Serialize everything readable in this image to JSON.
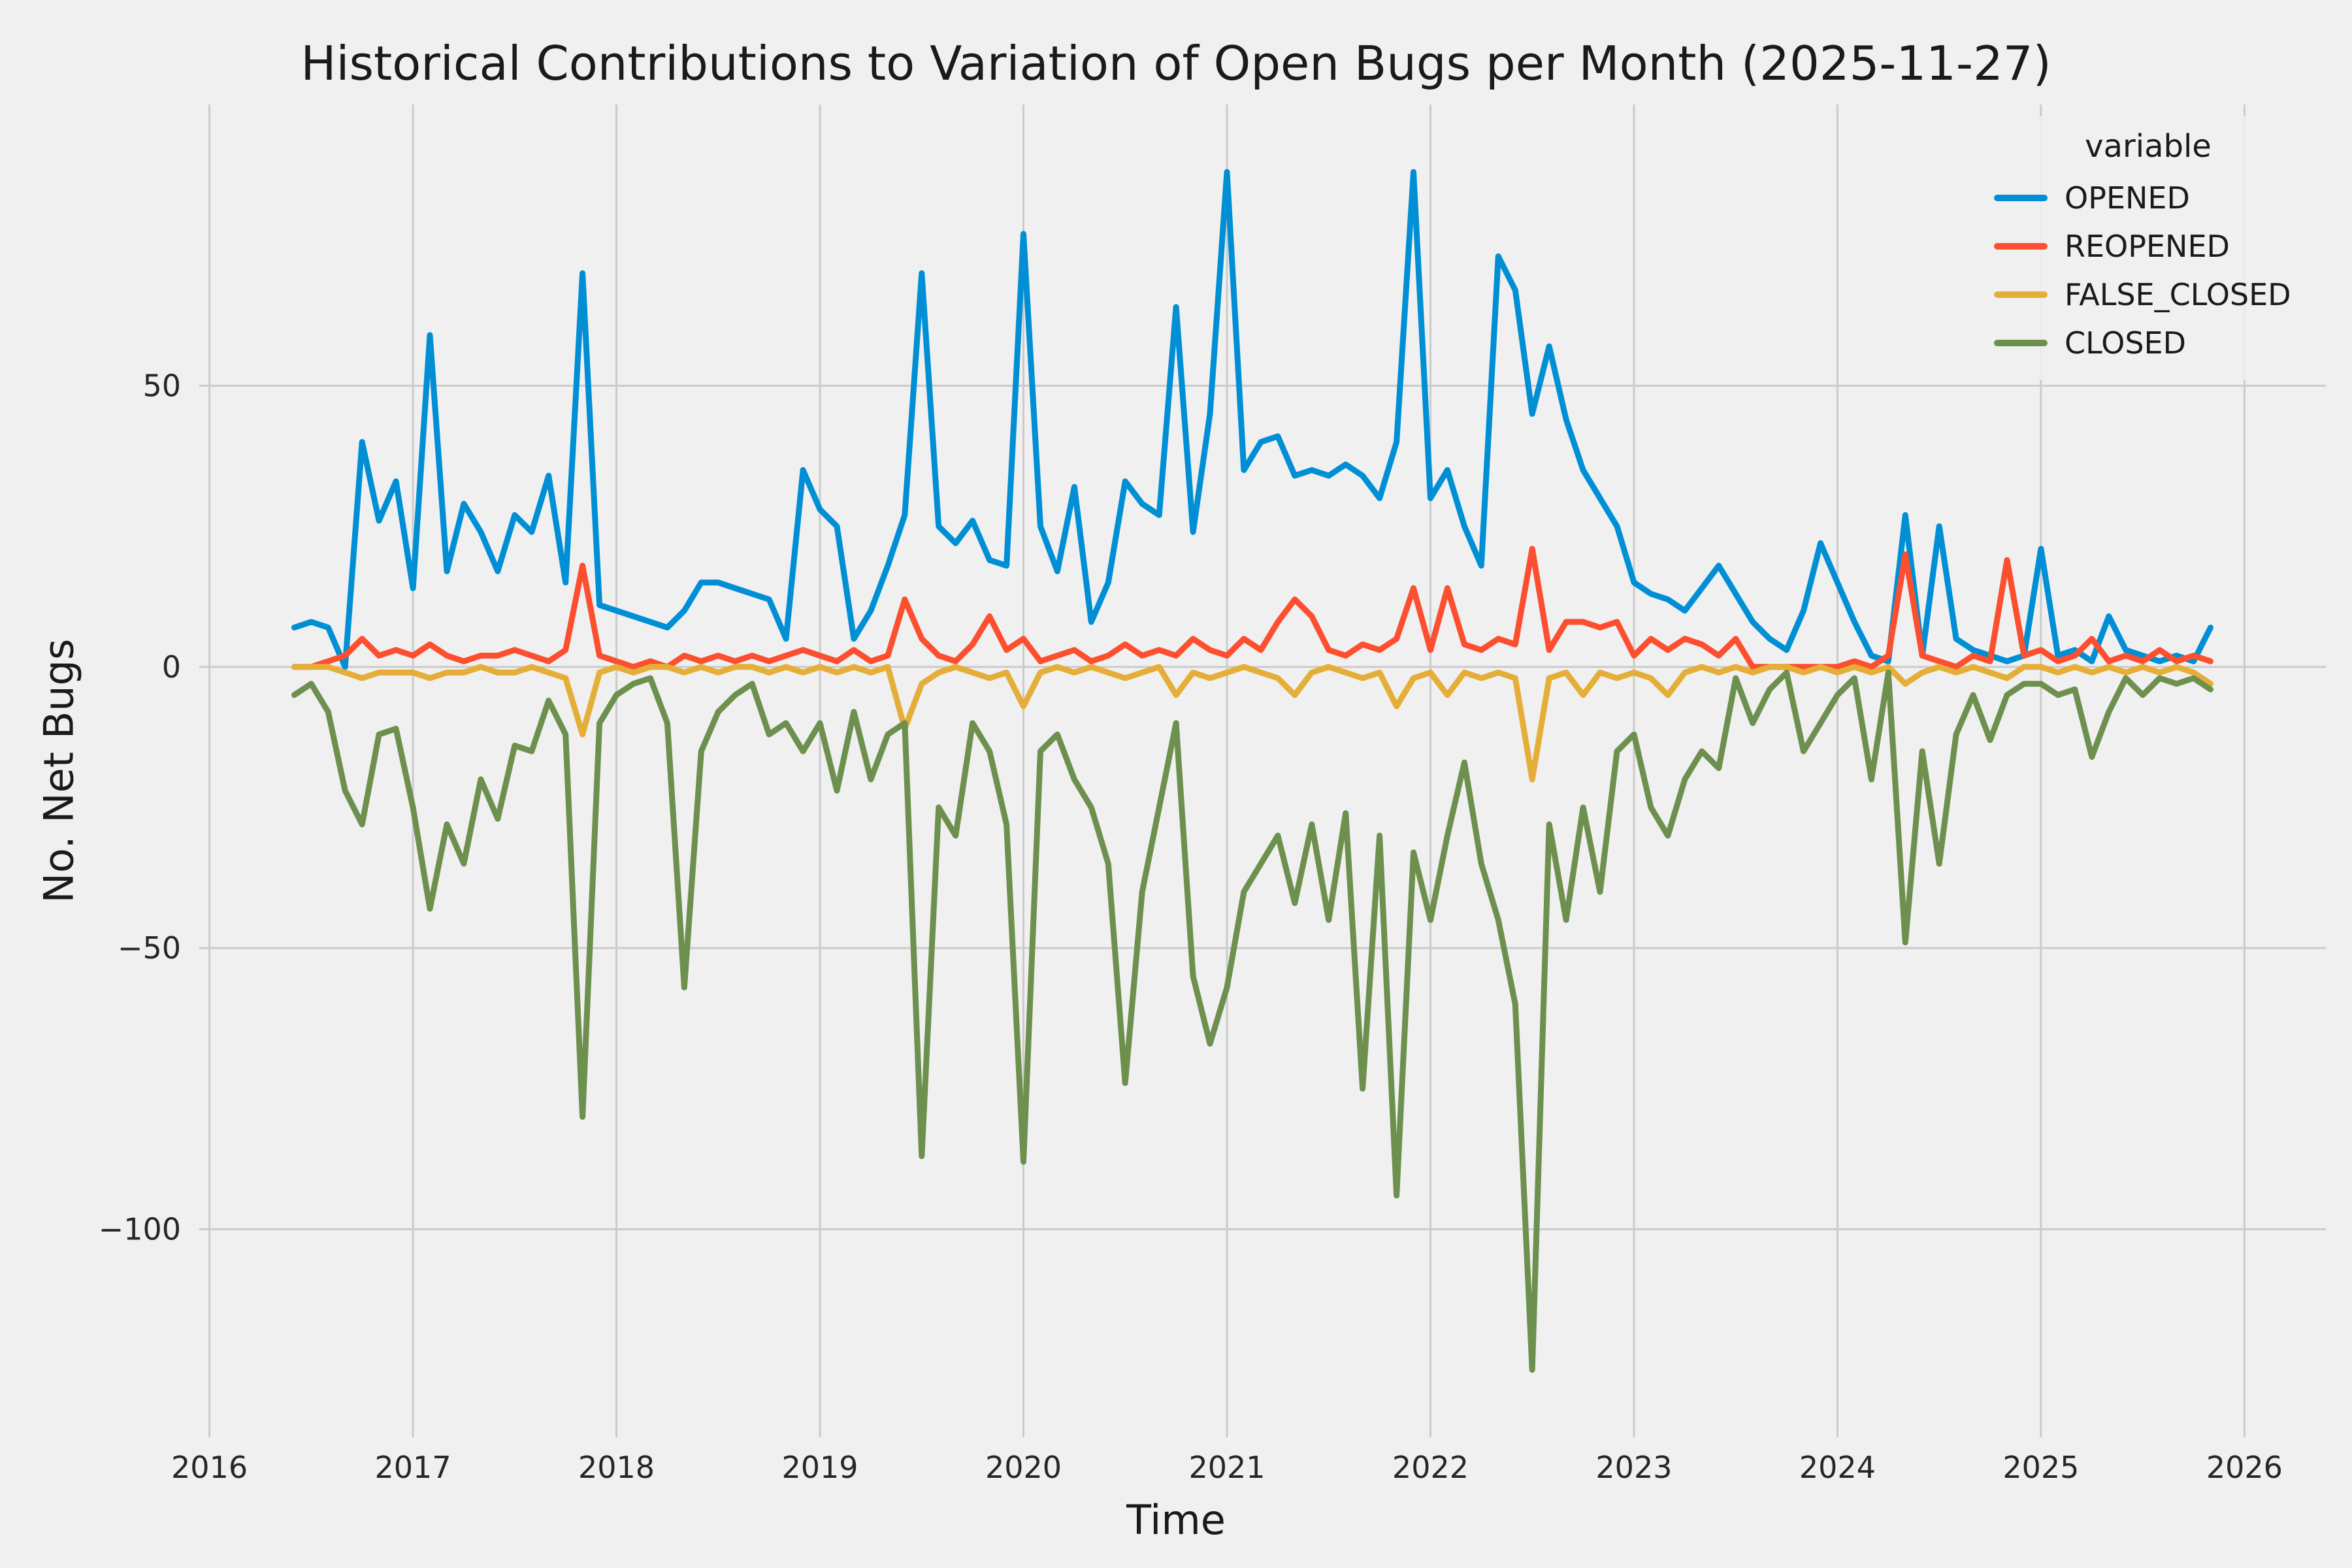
{
  "title": "Historical Contributions to Variation of Open Bugs per Month (2025-11-27)",
  "colors": {
    "background": "#F0F0F0",
    "grid": "#CBCBCB",
    "text": "#262626",
    "opened": "#008FD5",
    "reopened": "#FC4F30",
    "false_closed": "#E5AE38",
    "closed": "#6D904F"
  },
  "chart_data": {
    "type": "line",
    "title": "Historical Contributions to Variation of Open Bugs per Month (2025-11-27)",
    "xlabel": "Time",
    "ylabel": "No. Net Bugs",
    "legend_title": "variable",
    "legend_position": "upper right",
    "grid": true,
    "xlim": [
      2015.95,
      2026.4
    ],
    "ylim": [
      -137,
      100
    ],
    "x_start": "2016-06",
    "x_end": "2025-11",
    "x_frequency": "monthly",
    "xticks": [
      {
        "value": 2016,
        "label": "2016"
      },
      {
        "value": 2017,
        "label": "2017"
      },
      {
        "value": 2018,
        "label": "2018"
      },
      {
        "value": 2019,
        "label": "2019"
      },
      {
        "value": 2020,
        "label": "2020"
      },
      {
        "value": 2021,
        "label": "2021"
      },
      {
        "value": 2022,
        "label": "2022"
      },
      {
        "value": 2023,
        "label": "2023"
      },
      {
        "value": 2024,
        "label": "2024"
      },
      {
        "value": 2025,
        "label": "2025"
      },
      {
        "value": 2026,
        "label": "2026"
      }
    ],
    "yticks": [
      {
        "value": 50,
        "label": "50"
      },
      {
        "value": 0,
        "label": "0"
      },
      {
        "value": -50,
        "label": "−50"
      },
      {
        "value": -100,
        "label": "−100"
      }
    ],
    "series": [
      {
        "name": "OPENED",
        "color": "#008FD5",
        "values": [
          7,
          8,
          7,
          0,
          40,
          26,
          33,
          14,
          59,
          17,
          29,
          24,
          17,
          27,
          24,
          34,
          15,
          70,
          11,
          10,
          9,
          8,
          7,
          10,
          15,
          15,
          14,
          13,
          12,
          5,
          35,
          28,
          25,
          5,
          10,
          18,
          27,
          70,
          25,
          22,
          26,
          19,
          18,
          77,
          25,
          17,
          32,
          8,
          15,
          33,
          29,
          27,
          64,
          24,
          45,
          88,
          35,
          40,
          41,
          34,
          35,
          34,
          36,
          34,
          30,
          40,
          88,
          30,
          35,
          25,
          18,
          73,
          67,
          45,
          57,
          44,
          35,
          30,
          25,
          15,
          13,
          12,
          10,
          14,
          18,
          13,
          8,
          5,
          3,
          10,
          22,
          15,
          8,
          2,
          1,
          27,
          2,
          25,
          5,
          3,
          2,
          1,
          2,
          21,
          2,
          3,
          1,
          9,
          3,
          2,
          1,
          2,
          1,
          7
        ]
      },
      {
        "name": "REOPENED",
        "color": "#FC4F30",
        "values": [
          0,
          0,
          1,
          2,
          5,
          2,
          3,
          2,
          4,
          2,
          1,
          2,
          2,
          3,
          2,
          1,
          3,
          18,
          2,
          1,
          0,
          1,
          0,
          2,
          1,
          2,
          1,
          2,
          1,
          2,
          3,
          2,
          1,
          3,
          1,
          2,
          12,
          5,
          2,
          1,
          4,
          9,
          3,
          5,
          1,
          2,
          3,
          1,
          2,
          4,
          2,
          3,
          2,
          5,
          3,
          2,
          5,
          3,
          8,
          12,
          9,
          3,
          2,
          4,
          3,
          5,
          14,
          3,
          14,
          4,
          3,
          5,
          4,
          21,
          3,
          8,
          8,
          7,
          8,
          2,
          5,
          3,
          5,
          4,
          2,
          5,
          0,
          0,
          0,
          0,
          0,
          0,
          1,
          0,
          2,
          20,
          2,
          1,
          0,
          2,
          1,
          19,
          2,
          3,
          1,
          2,
          5,
          1,
          2,
          1,
          3,
          1,
          2,
          1
        ]
      },
      {
        "name": "FALSE_CLOSED",
        "color": "#E5AE38",
        "values": [
          0,
          0,
          0,
          -1,
          -2,
          -1,
          -1,
          -1,
          -2,
          -1,
          -1,
          0,
          -1,
          -1,
          0,
          -1,
          -2,
          -12,
          -1,
          0,
          -1,
          0,
          0,
          -1,
          0,
          -1,
          0,
          0,
          -1,
          0,
          -1,
          0,
          -1,
          0,
          -1,
          0,
          -11,
          -3,
          -1,
          0,
          -1,
          -2,
          -1,
          -7,
          -1,
          0,
          -1,
          0,
          -1,
          -2,
          -1,
          0,
          -5,
          -1,
          -2,
          -1,
          0,
          -1,
          -2,
          -5,
          -1,
          0,
          -1,
          -2,
          -1,
          -7,
          -2,
          -1,
          -5,
          -1,
          -2,
          -1,
          -2,
          -20,
          -2,
          -1,
          -5,
          -1,
          -2,
          -1,
          -2,
          -5,
          -1,
          0,
          -1,
          0,
          -1,
          0,
          0,
          -1,
          0,
          -1,
          0,
          -1,
          0,
          -3,
          -1,
          0,
          -1,
          0,
          -1,
          -2,
          0,
          0,
          -1,
          0,
          -1,
          0,
          -1,
          0,
          -1,
          0,
          -1,
          -3
        ]
      },
      {
        "name": "CLOSED",
        "color": "#6D904F",
        "values": [
          -5,
          -3,
          -8,
          -22,
          -28,
          -12,
          -11,
          -25,
          -43,
          -28,
          -35,
          -20,
          -27,
          -14,
          -15,
          -6,
          -12,
          -80,
          -10,
          -5,
          -3,
          -2,
          -10,
          -57,
          -15,
          -8,
          -5,
          -3,
          -12,
          -10,
          -15,
          -10,
          -22,
          -8,
          -20,
          -12,
          -10,
          -87,
          -25,
          -30,
          -10,
          -15,
          -28,
          -88,
          -15,
          -12,
          -20,
          -25,
          -35,
          -74,
          -40,
          -25,
          -10,
          -55,
          -67,
          -57,
          -40,
          -35,
          -30,
          -42,
          -28,
          -45,
          -26,
          -75,
          -30,
          -94,
          -33,
          -45,
          -30,
          -17,
          -35,
          -45,
          -60,
          -125,
          -28,
          -45,
          -25,
          -40,
          -15,
          -12,
          -25,
          -30,
          -20,
          -15,
          -18,
          -2,
          -10,
          -4,
          -1,
          -15,
          -10,
          -5,
          -2,
          -20,
          -1,
          -49,
          -15,
          -35,
          -12,
          -5,
          -13,
          -5,
          -3,
          -3,
          -5,
          -4,
          -16,
          -8,
          -2,
          -5,
          -2,
          -3,
          -2,
          -4
        ]
      }
    ]
  }
}
